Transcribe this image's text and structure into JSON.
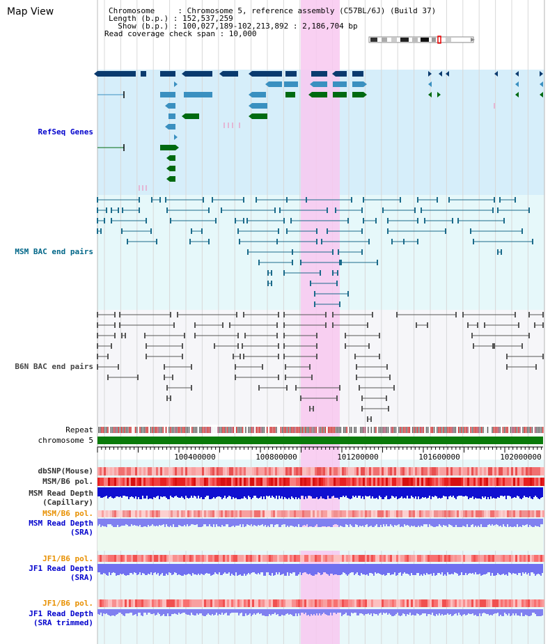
{
  "page": {
    "title": "Map View"
  },
  "info": {
    "chromosome": "Chromosome     : Chromosome 5, reference assembly (C57BL/6J) (Build 37)",
    "length": "Length (b.p.) : 152,537,259",
    "show": "  Show (b.p.) : 100,027,189-102,213,892 : 2,186,704 bp",
    "coverage": "Read coverage check span : 10,000"
  },
  "tracks": {
    "refseq": {
      "label": "RefSeq Genes",
      "color": "#0000cc"
    },
    "msm_bac": {
      "label": "MSM BAC end pairs",
      "color": "#006688"
    },
    "b6n_bac": {
      "label": "B6N BAC end pairs",
      "color": "#444444"
    },
    "repeat": {
      "label": "Repeat"
    },
    "chromosome": {
      "label": "chromosome 5"
    },
    "dbsnp": {
      "label": "dbSNP(Mouse)"
    },
    "msm_b6_pol": {
      "label": "MSM/B6 pol."
    },
    "msm_depth_cap": {
      "label": "MSM Read Depth",
      "label2": "(Capillary)"
    },
    "msm_b6_pol2": {
      "label": "MSM/B6 pol."
    },
    "msm_depth_sra": {
      "label": "MSM Read Depth",
      "label2": "(SRA)"
    },
    "jf1_b6_pol": {
      "label": "JF1/B6 pol."
    },
    "jf1_depth_sra": {
      "label": "JF1 Read Depth",
      "label2": "(SRA)"
    },
    "jf1_b6_pol2": {
      "label": "JF1/B6 pol."
    },
    "jf1_depth_trim": {
      "label": "JF1 Read Depth",
      "label2": "(SRA trimmed)"
    }
  },
  "axis": {
    "ticks": [
      "100400000",
      "100800000",
      "101200000",
      "101600000",
      "102000000"
    ]
  },
  "colors": {
    "refseq_bg": "#d6eefa",
    "msm_bg": "#e6f8fa",
    "b6n_bg": "#f5f5f8",
    "highlight": "#f8c8f0",
    "gene_dark": "#0a3a6e",
    "gene_mid": "#3a90c0",
    "gene_green": "#006a10",
    "chrom_bar": "#0a7a0a"
  }
}
